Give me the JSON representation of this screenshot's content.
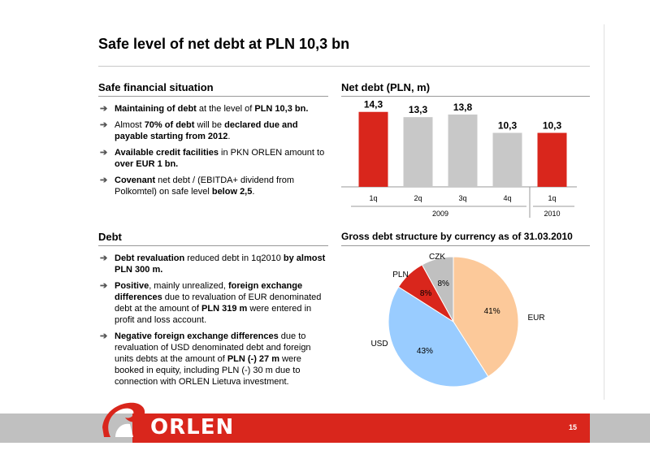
{
  "slide": {
    "title": "Safe level of net debt at PLN 10,3 bn",
    "page_number": "15",
    "logo_text": "ORLEN"
  },
  "financial": {
    "heading": "Safe financial situation",
    "bullets": [
      [
        {
          "t": "Maintaining of debt",
          "b": true
        },
        {
          "t": " at the level of ",
          "b": false
        },
        {
          "t": "PLN 10,3 bn.",
          "b": true
        }
      ],
      [
        {
          "t": "Almost ",
          "b": false
        },
        {
          "t": "70% of debt",
          "b": true
        },
        {
          "t": " will be ",
          "b": false
        },
        {
          "t": "declared due and payable starting from 2012",
          "b": true
        },
        {
          "t": ".",
          "b": false
        }
      ],
      [
        {
          "t": "Available credit facilities",
          "b": true
        },
        {
          "t": " in PKN ORLEN amount to ",
          "b": false
        },
        {
          "t": "over EUR 1 bn.",
          "b": true
        }
      ],
      [
        {
          "t": "Covenant",
          "b": true
        },
        {
          "t": " net debt / (EBITDA+ dividend from Polkomtel) on safe level ",
          "b": false
        },
        {
          "t": "below 2,5",
          "b": true
        },
        {
          "t": ".",
          "b": false
        }
      ]
    ]
  },
  "debt": {
    "heading": "Debt",
    "bullets": [
      [
        {
          "t": "Debt revaluation",
          "b": true
        },
        {
          "t": " reduced debt in 1q2010 ",
          "b": false
        },
        {
          "t": "by almost PLN 300 m.",
          "b": true
        }
      ],
      [
        {
          "t": "Positive",
          "b": true
        },
        {
          "t": ", mainly unrealized, ",
          "b": false
        },
        {
          "t": "foreign exchange differences",
          "b": true
        },
        {
          "t": " due to revaluation of EUR denominated debt at the amount of ",
          "b": false
        },
        {
          "t": "PLN 319 m",
          "b": true
        },
        {
          "t": " were entered in profit and loss account.",
          "b": false
        }
      ],
      [
        {
          "t": "Negative foreign exchange differences",
          "b": true
        },
        {
          "t": " due to revaluation of USD denominated debt and foreign units debts at the amount of ",
          "b": false
        },
        {
          "t": "PLN (-) 27 m",
          "b": true
        },
        {
          "t": " were booked in equity, including PLN (-) 30 m due to connection with ORLEN Lietuva investment.",
          "b": false
        }
      ]
    ]
  },
  "net_debt_heading": "Net debt (PLN, m)",
  "pie_heading": "Gross debt structure by currency as of 31.03.2010",
  "colors": {
    "red": "#d9261c",
    "grey": "#c8c8c8",
    "eur": "#fcc99a",
    "usd": "#99ccff",
    "pln": "#d9261c",
    "czk": "#c0c0c0"
  },
  "chart_data": [
    {
      "type": "bar",
      "categories": [
        "1q",
        "2q",
        "3q",
        "4q",
        "1q"
      ],
      "values": [
        14.3,
        13.3,
        13.8,
        10.3,
        10.3
      ],
      "value_labels": [
        "14,3",
        "13,3",
        "13,8",
        "10,3",
        "10,3"
      ],
      "bar_colors": [
        "red",
        "grey",
        "grey",
        "grey",
        "red"
      ],
      "groups": [
        {
          "label": "2009",
          "from": 0,
          "to": 3
        },
        {
          "label": "2010",
          "from": 4,
          "to": 4
        }
      ],
      "ylim": [
        0,
        15.5
      ]
    },
    {
      "type": "pie",
      "slices": [
        {
          "label": "EUR",
          "value": 41,
          "value_label": "41%",
          "color_key": "eur"
        },
        {
          "label": "USD",
          "value": 43,
          "value_label": "43%",
          "color_key": "usd"
        },
        {
          "label": "PLN",
          "value": 8,
          "value_label": "8%",
          "color_key": "pln"
        },
        {
          "label": "CZK",
          "value": 8,
          "value_label": "8%",
          "color_key": "czk"
        }
      ]
    }
  ]
}
